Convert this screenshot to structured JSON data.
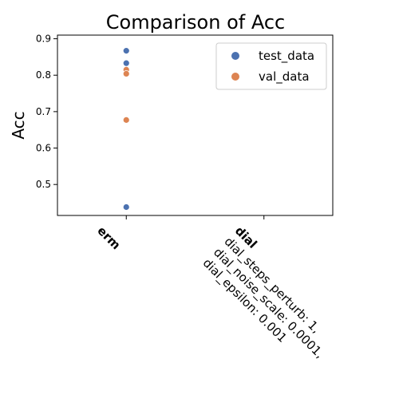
{
  "chart_data": {
    "type": "scatter",
    "title": "Comparison of Acc",
    "xlabel": "",
    "ylabel": "Acc",
    "categories": [
      "erm",
      "dial"
    ],
    "category_params": [
      [],
      [
        "dial_steps_perturb: 1,",
        "dial_noise_scale: 0.0001,",
        "dial_epsilon: 0.001"
      ]
    ],
    "yticks": [
      "0.5",
      "0.6",
      "0.7",
      "0.8",
      "0.9"
    ],
    "ylim": [
      0.415,
      0.91
    ],
    "grid": false,
    "legend_position": "top-right",
    "series": [
      {
        "name": "test_data",
        "color": "#4c72b0",
        "points": [
          {
            "category": "erm",
            "y": 0.867
          },
          {
            "category": "erm",
            "y": 0.833
          },
          {
            "category": "erm",
            "y": 0.438
          }
        ]
      },
      {
        "name": "val_data",
        "color": "#dd8452",
        "points": [
          {
            "category": "erm",
            "y": 0.815
          },
          {
            "category": "erm",
            "y": 0.804
          },
          {
            "category": "erm",
            "y": 0.677
          }
        ]
      }
    ]
  }
}
